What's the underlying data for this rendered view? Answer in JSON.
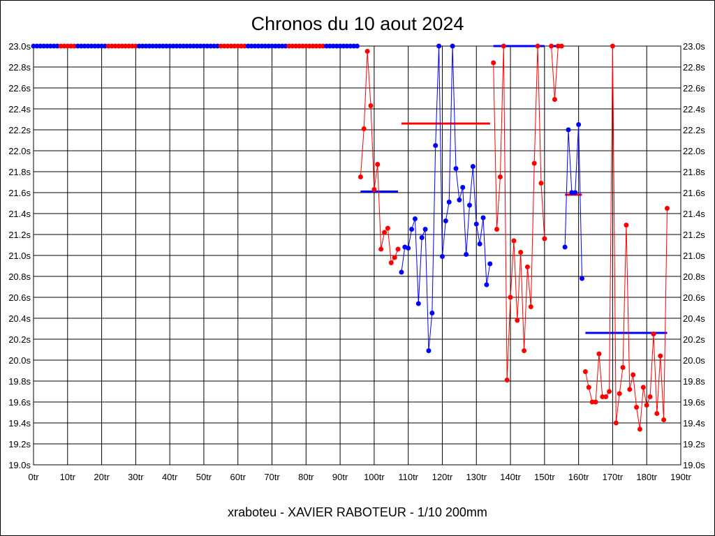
{
  "chart_data": {
    "type": "line",
    "title": "Chronos du 10 aout 2024",
    "xlabel": "xraboteu - XAVIER RABOTEUR - 1/10 200mm",
    "ylabel": "",
    "xlim": [
      0,
      190
    ],
    "ylim": [
      19.0,
      23.0
    ],
    "grid": true,
    "x_ticks": [
      "0tr",
      "10tr",
      "20tr",
      "30tr",
      "40tr",
      "50tr",
      "60tr",
      "70tr",
      "80tr",
      "90tr",
      "100tr",
      "110tr",
      "120tr",
      "130tr",
      "140tr",
      "150tr",
      "160tr",
      "170tr",
      "180tr",
      "190tr"
    ],
    "y_ticks": [
      "19.0s",
      "19.2s",
      "19.4s",
      "19.6s",
      "19.8s",
      "20.0s",
      "20.2s",
      "20.4s",
      "20.6s",
      "20.8s",
      "21.0s",
      "21.2s",
      "21.4s",
      "21.6s",
      "21.8s",
      "22.0s",
      "22.2s",
      "22.4s",
      "22.6s",
      "22.8s",
      "23.0s"
    ],
    "colors": {
      "red": "#ff0000",
      "blue": "#0000ff"
    },
    "series": [
      {
        "name": "start-blue-1",
        "color": "blue",
        "x": [
          0,
          1,
          2,
          3,
          4,
          5,
          6,
          7
        ],
        "y": [
          23,
          23,
          23,
          23,
          23,
          23,
          23,
          23
        ]
      },
      {
        "name": "start-red-1",
        "color": "red",
        "x": [
          8,
          9,
          10,
          11,
          12
        ],
        "y": [
          23,
          23,
          23,
          23,
          23
        ]
      },
      {
        "name": "start-blue-2",
        "color": "blue",
        "x": [
          13,
          14,
          15,
          16,
          17,
          18,
          19,
          20,
          21
        ],
        "y": [
          23,
          23,
          23,
          23,
          23,
          23,
          23,
          23,
          23
        ]
      },
      {
        "name": "start-red-2",
        "color": "red",
        "x": [
          22,
          23,
          24,
          25,
          26,
          27,
          28,
          29,
          30
        ],
        "y": [
          23,
          23,
          23,
          23,
          23,
          23,
          23,
          23,
          23
        ]
      },
      {
        "name": "start-blue-3",
        "color": "blue",
        "x": [
          31,
          32,
          33,
          34,
          35,
          36,
          37,
          38,
          39,
          40,
          41,
          42,
          43,
          44,
          45,
          46,
          47,
          48,
          49,
          50,
          51,
          52,
          53,
          54
        ],
        "y": [
          23,
          23,
          23,
          23,
          23,
          23,
          23,
          23,
          23,
          23,
          23,
          23,
          23,
          23,
          23,
          23,
          23,
          23,
          23,
          23,
          23,
          23,
          23,
          23
        ]
      },
      {
        "name": "start-red-3",
        "color": "red",
        "x": [
          55,
          56,
          57,
          58,
          59,
          60,
          61,
          62
        ],
        "y": [
          23,
          23,
          23,
          23,
          23,
          23,
          23,
          23
        ]
      },
      {
        "name": "start-blue-4",
        "color": "blue",
        "x": [
          63,
          64,
          65,
          66,
          67,
          68,
          69,
          70,
          71,
          72,
          73,
          74
        ],
        "y": [
          23,
          23,
          23,
          23,
          23,
          23,
          23,
          23,
          23,
          23,
          23,
          23
        ]
      },
      {
        "name": "start-red-4",
        "color": "red",
        "x": [
          75,
          76,
          77,
          78,
          79,
          80,
          81,
          82,
          83,
          84,
          85
        ],
        "y": [
          23,
          23,
          23,
          23,
          23,
          23,
          23,
          23,
          23,
          23,
          23
        ]
      },
      {
        "name": "start-blue-5",
        "color": "blue",
        "x": [
          86,
          87,
          88,
          89,
          90,
          91,
          92,
          93,
          94,
          95
        ],
        "y": [
          23,
          23,
          23,
          23,
          23,
          23,
          23,
          23,
          23,
          23
        ]
      },
      {
        "name": "run-red-1",
        "color": "red",
        "x": [
          96,
          97,
          98,
          99,
          100,
          101,
          102,
          103,
          104,
          105,
          106,
          107
        ],
        "y": [
          21.75,
          22.21,
          22.95,
          22.43,
          21.63,
          21.87,
          21.06,
          21.22,
          21.26,
          20.93,
          20.98,
          21.06
        ]
      },
      {
        "name": "run-blue-1",
        "color": "blue",
        "x": [
          108,
          109,
          110,
          111,
          112,
          113,
          114,
          115,
          116,
          117,
          118,
          119,
          120,
          121,
          122,
          123,
          124,
          125,
          126,
          127,
          128,
          129,
          130,
          131,
          132,
          133,
          134
        ],
        "y": [
          20.84,
          21.08,
          21.07,
          21.25,
          21.35,
          20.54,
          21.17,
          21.25,
          20.09,
          20.45,
          22.05,
          23.0,
          20.99,
          21.33,
          21.51,
          23.0,
          21.83,
          21.53,
          21.65,
          21.01,
          21.48,
          21.85,
          21.3,
          21.11,
          21.36,
          20.72,
          20.92
        ]
      },
      {
        "name": "run-red-2",
        "color": "red",
        "x": [
          135,
          136,
          137,
          138,
          139,
          140,
          141,
          142,
          143,
          144,
          145,
          146,
          147,
          148,
          149,
          150
        ],
        "y": [
          22.84,
          21.25,
          21.75,
          23.0,
          19.81,
          20.6,
          21.14,
          20.38,
          21.03,
          20.09,
          20.89,
          20.51,
          21.88,
          23.0,
          21.69,
          21.16
        ]
      },
      {
        "name": "run-red-3",
        "color": "red",
        "x": [
          152,
          153,
          154,
          155
        ],
        "y": [
          23.0,
          22.49,
          23.0,
          23.0
        ]
      },
      {
        "name": "run-blue-2",
        "color": "blue",
        "x": [
          156,
          157,
          158,
          159,
          160,
          161
        ],
        "y": [
          21.08,
          22.2,
          21.6,
          21.6,
          22.25,
          20.78
        ]
      },
      {
        "name": "run-red-4",
        "color": "red",
        "x": [
          162,
          163,
          164,
          165,
          166,
          167,
          168,
          169,
          170,
          171,
          172,
          173,
          174,
          175,
          176,
          177,
          178,
          179,
          180,
          181,
          182,
          183,
          184,
          185,
          186
        ],
        "y": [
          19.89,
          19.74,
          19.6,
          19.6,
          20.06,
          19.65,
          19.65,
          19.7,
          23.0,
          19.4,
          19.68,
          19.93,
          21.29,
          19.72,
          19.86,
          19.55,
          19.34,
          19.74,
          19.57,
          19.65,
          20.25,
          19.49,
          20.04,
          19.43,
          21.45
        ]
      }
    ],
    "averages": [
      {
        "color": "blue",
        "x": [
          96,
          107
        ],
        "y": 21.61
      },
      {
        "color": "red",
        "x": [
          108,
          134
        ],
        "y": 22.26
      },
      {
        "color": "blue",
        "x": [
          135,
          150
        ],
        "y": 23.0
      },
      {
        "color": "blue",
        "x": [
          152,
          155
        ],
        "y": 23.0
      },
      {
        "color": "red",
        "x": [
          156,
          161
        ],
        "y": 21.58
      },
      {
        "color": "blue",
        "x": [
          162,
          186
        ],
        "y": 20.26
      }
    ]
  }
}
